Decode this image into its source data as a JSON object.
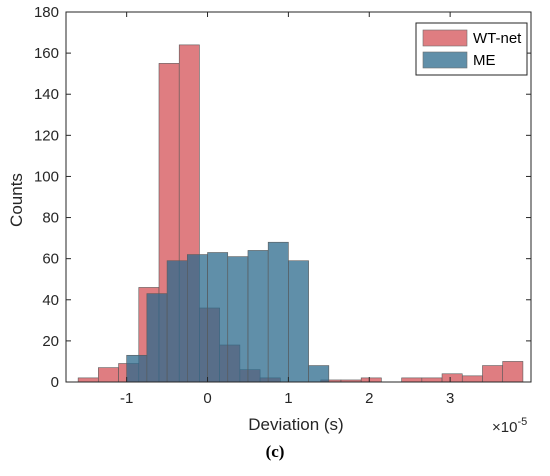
{
  "caption": "(c)",
  "chart_data": {
    "type": "histogram",
    "xlabel": "Deviation (s)",
    "ylabel": "Counts",
    "x_exponent": "×10",
    "x_exponent_power": "-5",
    "xlim": [
      -1.75,
      4.0
    ],
    "ylim": [
      0,
      180
    ],
    "xticks": [
      -1,
      0,
      1,
      2,
      3,
      4
    ],
    "xtick_labels": [
      "-1",
      "0",
      "1",
      "2",
      "3",
      ""
    ],
    "yticks": [
      0,
      20,
      40,
      60,
      80,
      100,
      120,
      140,
      160,
      180
    ],
    "legend_position": "top-right",
    "series": [
      {
        "name": "WT-net",
        "color": "#d9666b",
        "bin_edges": [
          -1.6,
          -1.35,
          -1.1,
          -0.85,
          -0.6,
          -0.35,
          -0.1,
          0.15,
          0.4,
          0.65,
          0.9,
          1.15,
          1.4,
          1.65,
          1.9,
          2.15,
          2.4,
          2.65,
          2.9,
          3.15,
          3.4,
          3.65,
          3.9
        ],
        "counts": [
          2,
          7,
          9,
          46,
          155,
          164,
          36,
          18,
          6,
          2,
          0,
          0,
          1,
          1,
          2,
          0,
          2,
          2,
          4,
          3,
          8,
          10
        ]
      },
      {
        "name": "ME",
        "color": "#2b6a8c",
        "bin_edges": [
          -1.0,
          -0.75,
          -0.5,
          -0.25,
          0.0,
          0.25,
          0.5,
          0.75,
          1.0,
          1.25,
          1.5
        ],
        "counts": [
          13,
          43,
          59,
          62,
          63,
          61,
          64,
          68,
          59,
          8
        ]
      }
    ]
  }
}
